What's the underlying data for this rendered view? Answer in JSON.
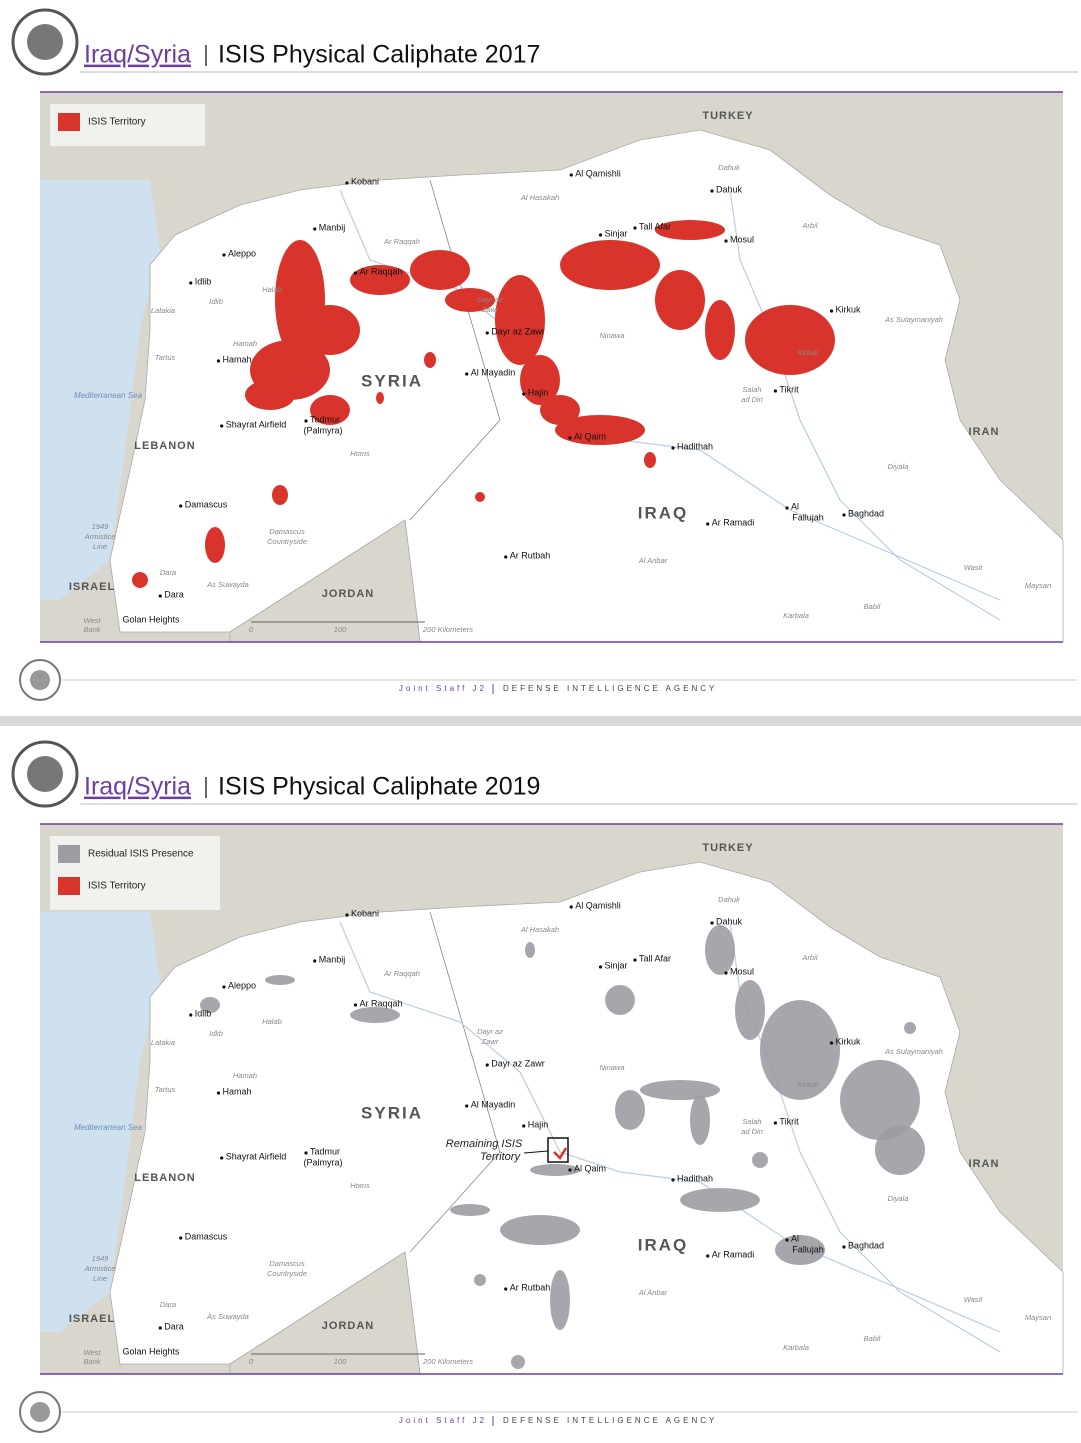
{
  "slides": [
    {
      "header": {
        "region": "Iraq/Syria",
        "title": "ISIS Physical Caliphate 2017"
      },
      "legend": [
        "ISIS Territory"
      ],
      "map_labels": [
        "TURKEY",
        "SYRIA",
        "IRAQ",
        "LEBANON",
        "ISRAEL",
        "JORDAN",
        "IRAN",
        "Mediterranean Sea",
        "Kobani",
        "Al Qamishli",
        "Dahuk",
        "Manbij",
        "Aleppo",
        "Ar Raqqah",
        "Sinjar",
        "Tall Afar",
        "Mosul",
        "Idlib",
        "Kirkuk",
        "Dayr az Zawr",
        "Hamah",
        "Al Mayadin",
        "Tikrit",
        "Hajin",
        "Shayrat Airfield",
        "Tadmur",
        "(Palmyra)",
        "Al Qaim",
        "Hadithah",
        "Damascus",
        "Ar Ramadi",
        "Al",
        "Fallujah",
        "Baghdad",
        "Ar Rutbah",
        "Dara",
        "Golan Heights",
        "West",
        "Bank",
        "1949",
        "Armistice",
        "Line",
        "Al Hasakah",
        "Dahuk",
        "Arbil",
        "Ar Raqqah",
        "Halab",
        "Idlib",
        "Latakia",
        "Hamah",
        "Tartus",
        "Dayr az",
        "Zawr",
        "Ninawa",
        "As Sulaymaniyah",
        "Kirkuk",
        "Salah",
        "ad Din",
        "Homs",
        "Diyala",
        "Damascus",
        "Countryside",
        "Al Anbar",
        "Wasit",
        "Maysan",
        "Dara",
        "As Suwayda",
        "Karbala",
        "Babil",
        "0",
        "100",
        "200 Kilometers"
      ],
      "footer": {
        "left": "Joint Staff J2",
        "right": "DEFENSE INTELLIGENCE AGENCY"
      }
    },
    {
      "header": {
        "region": "Iraq/Syria",
        "title": "ISIS Physical Caliphate 2019"
      },
      "legend": [
        "Residual ISIS Presence",
        "ISIS Territory"
      ],
      "map_labels": [
        "TURKEY",
        "SYRIA",
        "IRAQ",
        "LEBANON",
        "ISRAEL",
        "JORDAN",
        "IRAN",
        "Mediterranean Sea",
        "Kobani",
        "Al Qamishli",
        "Dahuk",
        "Manbij",
        "Aleppo",
        "Ar Raqqah",
        "Sinjar",
        "Tall Afar",
        "Mosul",
        "Idlib",
        "Kirkuk",
        "Dayr az Zawr",
        "Hamah",
        "Al Mayadin",
        "Tikrit",
        "Hajin",
        "Shayrat Airfield",
        "Tadmur",
        "(Palmyra)",
        "Al Qaim",
        "Hadithah",
        "Damascus",
        "Ar Ramadi",
        "Al",
        "Fallujah",
        "Baghdad",
        "Ar Rutbah",
        "Dara",
        "Golan Heights",
        "West",
        "Bank",
        "1949",
        "Armistice",
        "Line",
        "Al Hasakah",
        "Dahuk",
        "Arbil",
        "Ar Raqqah",
        "Halab",
        "Idlib",
        "Latakia",
        "Hamah",
        "Tartus",
        "Dayr az",
        "Zawr",
        "Ninawa",
        "As Sulaymaniyah",
        "Kirkuk",
        "Salah",
        "ad Din",
        "Homs",
        "Diyala",
        "Damascus",
        "Countryside",
        "Al Anbar",
        "Wasit",
        "Maysan",
        "Dara",
        "As Suwayda",
        "Karbala",
        "Babil",
        "0",
        "100",
        "200 Kilometers"
      ],
      "annotation": [
        "Remaining ISIS",
        "Territory"
      ],
      "footer": {
        "left": "Joint Staff J2",
        "right": "DEFENSE INTELLIGENCE AGENCY"
      }
    }
  ]
}
